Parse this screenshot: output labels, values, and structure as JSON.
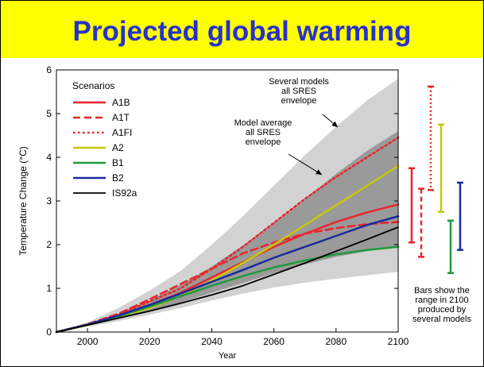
{
  "slide": {
    "title": "Projected global warming"
  },
  "chart_data": {
    "type": "line",
    "title": "",
    "xlabel": "Year",
    "ylabel": "Temperature Change (°C)",
    "xlim": [
      1990,
      2100
    ],
    "ylim": [
      0,
      6
    ],
    "xticks": [
      2000,
      2020,
      2040,
      2060,
      2080,
      2100
    ],
    "yticks": [
      0,
      1,
      2,
      3,
      4,
      5,
      6
    ],
    "legend": {
      "title": "Scenarios",
      "position": "top-left"
    },
    "series": [
      {
        "name": "A1B",
        "color": "#e8262b",
        "dash": "solid",
        "width": 2.5,
        "x": [
          1990,
          2000,
          2010,
          2020,
          2030,
          2040,
          2050,
          2060,
          2070,
          2080,
          2090,
          2100
        ],
        "values": [
          0,
          0.17,
          0.38,
          0.62,
          0.9,
          1.25,
          1.6,
          1.95,
          2.25,
          2.52,
          2.74,
          2.92
        ]
      },
      {
        "name": "A1T",
        "color": "#e8262b",
        "dash": "dashed",
        "width": 2.5,
        "x": [
          1990,
          2000,
          2010,
          2020,
          2030,
          2040,
          2050,
          2060,
          2070,
          2080,
          2090,
          2100
        ],
        "values": [
          0,
          0.18,
          0.42,
          0.75,
          1.1,
          1.45,
          1.8,
          2.05,
          2.25,
          2.38,
          2.47,
          2.52
        ]
      },
      {
        "name": "A1FI",
        "color": "#e8262b",
        "dash": "dotted",
        "width": 2.5,
        "x": [
          1990,
          2000,
          2010,
          2020,
          2030,
          2040,
          2050,
          2060,
          2070,
          2080,
          2090,
          2100
        ],
        "values": [
          0,
          0.17,
          0.4,
          0.7,
          1.0,
          1.45,
          1.95,
          2.5,
          3.05,
          3.55,
          4.0,
          4.45
        ]
      },
      {
        "name": "A2",
        "color": "#c8c80a",
        "dash": "solid",
        "width": 2.5,
        "x": [
          1990,
          2000,
          2010,
          2020,
          2030,
          2040,
          2050,
          2060,
          2070,
          2080,
          2090,
          2100
        ],
        "values": [
          0,
          0.16,
          0.35,
          0.55,
          0.82,
          1.18,
          1.58,
          2.0,
          2.45,
          2.9,
          3.35,
          3.8
        ]
      },
      {
        "name": "B1",
        "color": "#1f9a3c",
        "dash": "solid",
        "width": 2.5,
        "x": [
          1990,
          2000,
          2010,
          2020,
          2030,
          2040,
          2050,
          2060,
          2070,
          2080,
          2090,
          2100
        ],
        "values": [
          0,
          0.17,
          0.36,
          0.58,
          0.82,
          1.06,
          1.28,
          1.48,
          1.64,
          1.78,
          1.88,
          1.95
        ]
      },
      {
        "name": "B2",
        "color": "#1a2a9a",
        "dash": "solid",
        "width": 2.5,
        "x": [
          1990,
          2000,
          2010,
          2020,
          2030,
          2040,
          2050,
          2060,
          2070,
          2080,
          2090,
          2100
        ],
        "values": [
          0,
          0.17,
          0.38,
          0.62,
          0.88,
          1.15,
          1.42,
          1.7,
          1.95,
          2.2,
          2.45,
          2.65
        ]
      },
      {
        "name": "IS92a",
        "color": "#000000",
        "dash": "solid",
        "width": 1.8,
        "x": [
          1990,
          2000,
          2010,
          2020,
          2030,
          2040,
          2050,
          2060,
          2070,
          2080,
          2090,
          2100
        ],
        "values": [
          0,
          0.16,
          0.32,
          0.48,
          0.66,
          0.85,
          1.06,
          1.32,
          1.58,
          1.85,
          2.12,
          2.4
        ]
      }
    ],
    "envelopes": [
      {
        "label": "Several models all SRES envelope",
        "color": "#d2d2d2",
        "x": [
          1990,
          2000,
          2010,
          2020,
          2030,
          2040,
          2050,
          2060,
          2070,
          2080,
          2090,
          2100
        ],
        "lower": [
          0,
          0.12,
          0.25,
          0.4,
          0.55,
          0.72,
          0.88,
          1.02,
          1.13,
          1.22,
          1.3,
          1.38
        ],
        "upper": [
          0,
          0.22,
          0.55,
          0.95,
          1.4,
          2.0,
          2.65,
          3.35,
          4.05,
          4.7,
          5.3,
          5.8
        ]
      },
      {
        "label": "Model average all SRES envelope",
        "color": "#9a9a9a",
        "x": [
          1990,
          2000,
          2010,
          2020,
          2030,
          2040,
          2050,
          2060,
          2070,
          2080,
          2090,
          2100
        ],
        "lower": [
          0,
          0.15,
          0.3,
          0.48,
          0.68,
          0.9,
          1.12,
          1.35,
          1.55,
          1.72,
          1.85,
          1.95
        ],
        "upper": [
          0,
          0.18,
          0.42,
          0.72,
          1.08,
          1.5,
          1.98,
          2.5,
          3.05,
          3.62,
          4.15,
          4.6
        ]
      }
    ],
    "annotations": [
      {
        "lines": [
          "Several models",
          "all SRES",
          "envelope"
        ]
      },
      {
        "lines": [
          "Model average",
          "all SRES",
          "envelope"
        ]
      }
    ],
    "range_bars": {
      "caption": [
        "Bars show the",
        "range in 2100",
        "produced by",
        "several models"
      ],
      "bars": [
        {
          "scenario": "A1B",
          "color": "#e8262b",
          "dash": "solid",
          "low": 2.05,
          "high": 3.75
        },
        {
          "scenario": "A1T",
          "color": "#e8262b",
          "dash": "dashed",
          "low": 1.72,
          "high": 3.28
        },
        {
          "scenario": "A1FI",
          "color": "#e8262b",
          "dash": "dotted",
          "low": 3.25,
          "high": 5.62
        },
        {
          "scenario": "A2",
          "color": "#c8c80a",
          "dash": "solid",
          "low": 2.75,
          "high": 4.75
        },
        {
          "scenario": "B1",
          "color": "#1f9a3c",
          "dash": "solid",
          "low": 1.35,
          "high": 2.55
        },
        {
          "scenario": "B2",
          "color": "#1a2a9a",
          "dash": "solid",
          "low": 1.88,
          "high": 3.42
        }
      ]
    }
  }
}
